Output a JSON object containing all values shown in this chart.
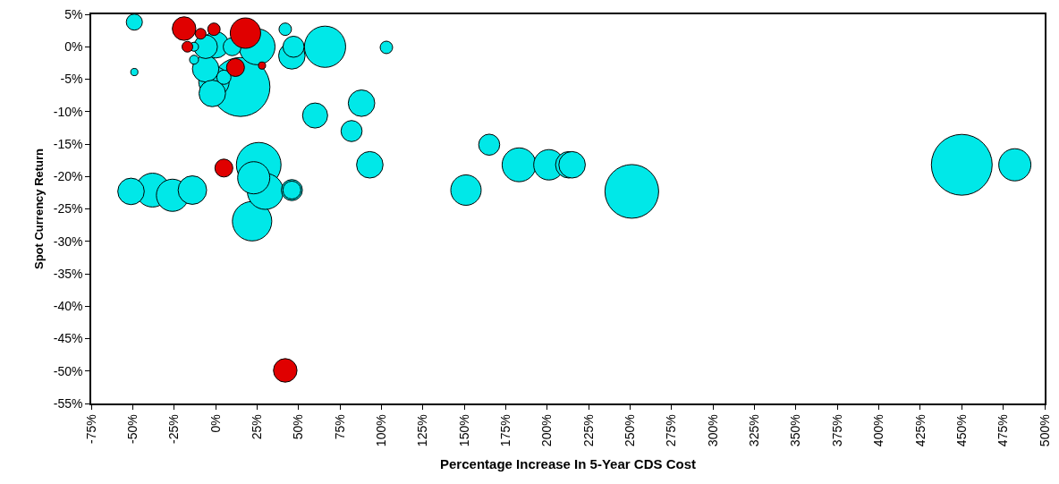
{
  "chart_data": {
    "type": "bubble",
    "xlabel": "Percentage Increase In 5-Year CDS Cost",
    "ylabel": "Spot Currency Return",
    "xlim": [
      -75,
      500
    ],
    "ylim": [
      -55,
      5
    ],
    "xticks": [
      {
        "value": -75,
        "label": "-75%"
      },
      {
        "value": -50,
        "label": "-50%"
      },
      {
        "value": -25,
        "label": "-25%"
      },
      {
        "value": 0,
        "label": "0%"
      },
      {
        "value": 25,
        "label": "25%"
      },
      {
        "value": 50,
        "label": "50%"
      },
      {
        "value": 75,
        "label": "75%"
      },
      {
        "value": 100,
        "label": "100%"
      },
      {
        "value": 125,
        "label": "125%"
      },
      {
        "value": 150,
        "label": "150%"
      },
      {
        "value": 175,
        "label": "175%"
      },
      {
        "value": 200,
        "label": "200%"
      },
      {
        "value": 225,
        "label": "225%"
      },
      {
        "value": 250,
        "label": "250%"
      },
      {
        "value": 275,
        "label": "275%"
      },
      {
        "value": 300,
        "label": "300%"
      },
      {
        "value": 325,
        "label": "325%"
      },
      {
        "value": 350,
        "label": "350%"
      },
      {
        "value": 375,
        "label": "375%"
      },
      {
        "value": 400,
        "label": "400%"
      },
      {
        "value": 425,
        "label": "425%"
      },
      {
        "value": 450,
        "label": "450%"
      },
      {
        "value": 475,
        "label": "475%"
      },
      {
        "value": 500,
        "label": "500%"
      }
    ],
    "yticks": [
      {
        "value": 5,
        "label": "5%"
      },
      {
        "value": 0,
        "label": "0%"
      },
      {
        "value": -5,
        "label": "-5%"
      },
      {
        "value": -10,
        "label": "-10%"
      },
      {
        "value": -15,
        "label": "-15%"
      },
      {
        "value": -20,
        "label": "-20%"
      },
      {
        "value": -25,
        "label": "-25%"
      },
      {
        "value": -30,
        "label": "-30%"
      },
      {
        "value": -35,
        "label": "-35%"
      },
      {
        "value": -40,
        "label": "-40%"
      },
      {
        "value": -45,
        "label": "-45%"
      },
      {
        "value": -50,
        "label": "-50%"
      },
      {
        "value": -55,
        "label": "-55%"
      }
    ],
    "series": [
      {
        "color": "#00e8e8",
        "x": [
          450,
          15,
          251,
          26,
          66,
          22,
          25,
          30,
          -38,
          183,
          -26,
          23,
          482,
          -1,
          201,
          151,
          -14,
          0,
          -6,
          -2,
          46,
          88,
          -51,
          93,
          213,
          215,
          60,
          -6,
          47,
          82,
          46,
          165,
          10,
          46,
          -49,
          5,
          42,
          103,
          -13,
          -13,
          -49
        ],
        "values": [
          -18.2,
          -6.2,
          -22.3,
          -18.2,
          0,
          -26.9,
          0,
          -22.3,
          -22.1,
          -18.2,
          -22.9,
          -20.2,
          -18.2,
          -5.4,
          -18.2,
          -22.1,
          -22.1,
          0.3,
          -3.4,
          -7.2,
          -1.4,
          -8.7,
          -22.3,
          -18.2,
          -18.2,
          -18.2,
          -10.6,
          0,
          0,
          -13,
          -22.1,
          -15.1,
          0,
          -22.1,
          3.8,
          -4.7,
          2.7,
          -0.1,
          -2,
          0,
          -3.9
        ],
        "sizes": [
          1,
          0.94,
          0.78,
          0.54,
          0.46,
          0.42,
          0.35,
          0.35,
          0.31,
          0.31,
          0.28,
          0.28,
          0.28,
          0.25,
          0.25,
          0.25,
          0.22,
          0.19,
          0.19,
          0.19,
          0.19,
          0.19,
          0.19,
          0.19,
          0.19,
          0.19,
          0.17,
          0.15,
          0.12,
          0.12,
          0.12,
          0.12,
          0.087,
          0.087,
          0.07,
          0.055,
          0.042,
          0.042,
          0.022,
          0.022,
          0.014
        ]
      },
      {
        "color": "#e00000",
        "x": [
          -19,
          -9,
          -1,
          -17,
          18,
          12,
          28,
          5,
          42
        ],
        "values": [
          2.8,
          2,
          2.7,
          0,
          2.1,
          -3.2,
          -2.9,
          -18.7,
          -49.9
        ],
        "sizes": [
          0.15,
          0.031,
          0.042,
          0.031,
          0.25,
          0.087,
          0.014,
          0.087,
          0.15
        ]
      }
    ]
  }
}
